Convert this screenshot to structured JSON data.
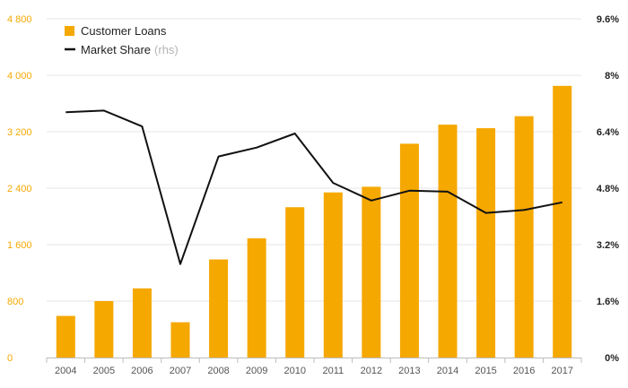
{
  "chart_data": {
    "type": "bar",
    "categories": [
      "2004",
      "2005",
      "2006",
      "2007",
      "2008",
      "2009",
      "2010",
      "2011",
      "2012",
      "2013",
      "2014",
      "2015",
      "2016",
      "2017"
    ],
    "series": [
      {
        "name": "Customer Loans",
        "type": "bar",
        "axis": "left",
        "color": "#f5a800",
        "values": [
          590,
          800,
          980,
          500,
          1390,
          1690,
          2130,
          2340,
          2420,
          3030,
          3300,
          3250,
          3420,
          3850
        ]
      },
      {
        "name": "Market Share",
        "name_suffix": "(rhs)",
        "type": "line",
        "axis": "right",
        "color": "#111111",
        "values": [
          6.95,
          7.0,
          6.55,
          2.65,
          5.7,
          5.95,
          6.35,
          4.95,
          4.45,
          4.73,
          4.7,
          4.1,
          4.18,
          4.4
        ]
      }
    ],
    "ylim_left": [
      0,
      4800
    ],
    "ylim_right": [
      0,
      9.6
    ],
    "yticks_left": [
      "0",
      "800",
      "1 600",
      "2 400",
      "3 200",
      "4 000",
      "4 800"
    ],
    "yticks_right": [
      "0%",
      "1.6%",
      "3.2%",
      "4.8%",
      "6.4%",
      "8%",
      "9.6%"
    ],
    "grid": true,
    "legend_position": "top-left",
    "colors": {
      "bar": "#f5a800",
      "line": "#111111",
      "left_axis_text": "#f5a800",
      "grid": "#e6e6e6"
    }
  }
}
